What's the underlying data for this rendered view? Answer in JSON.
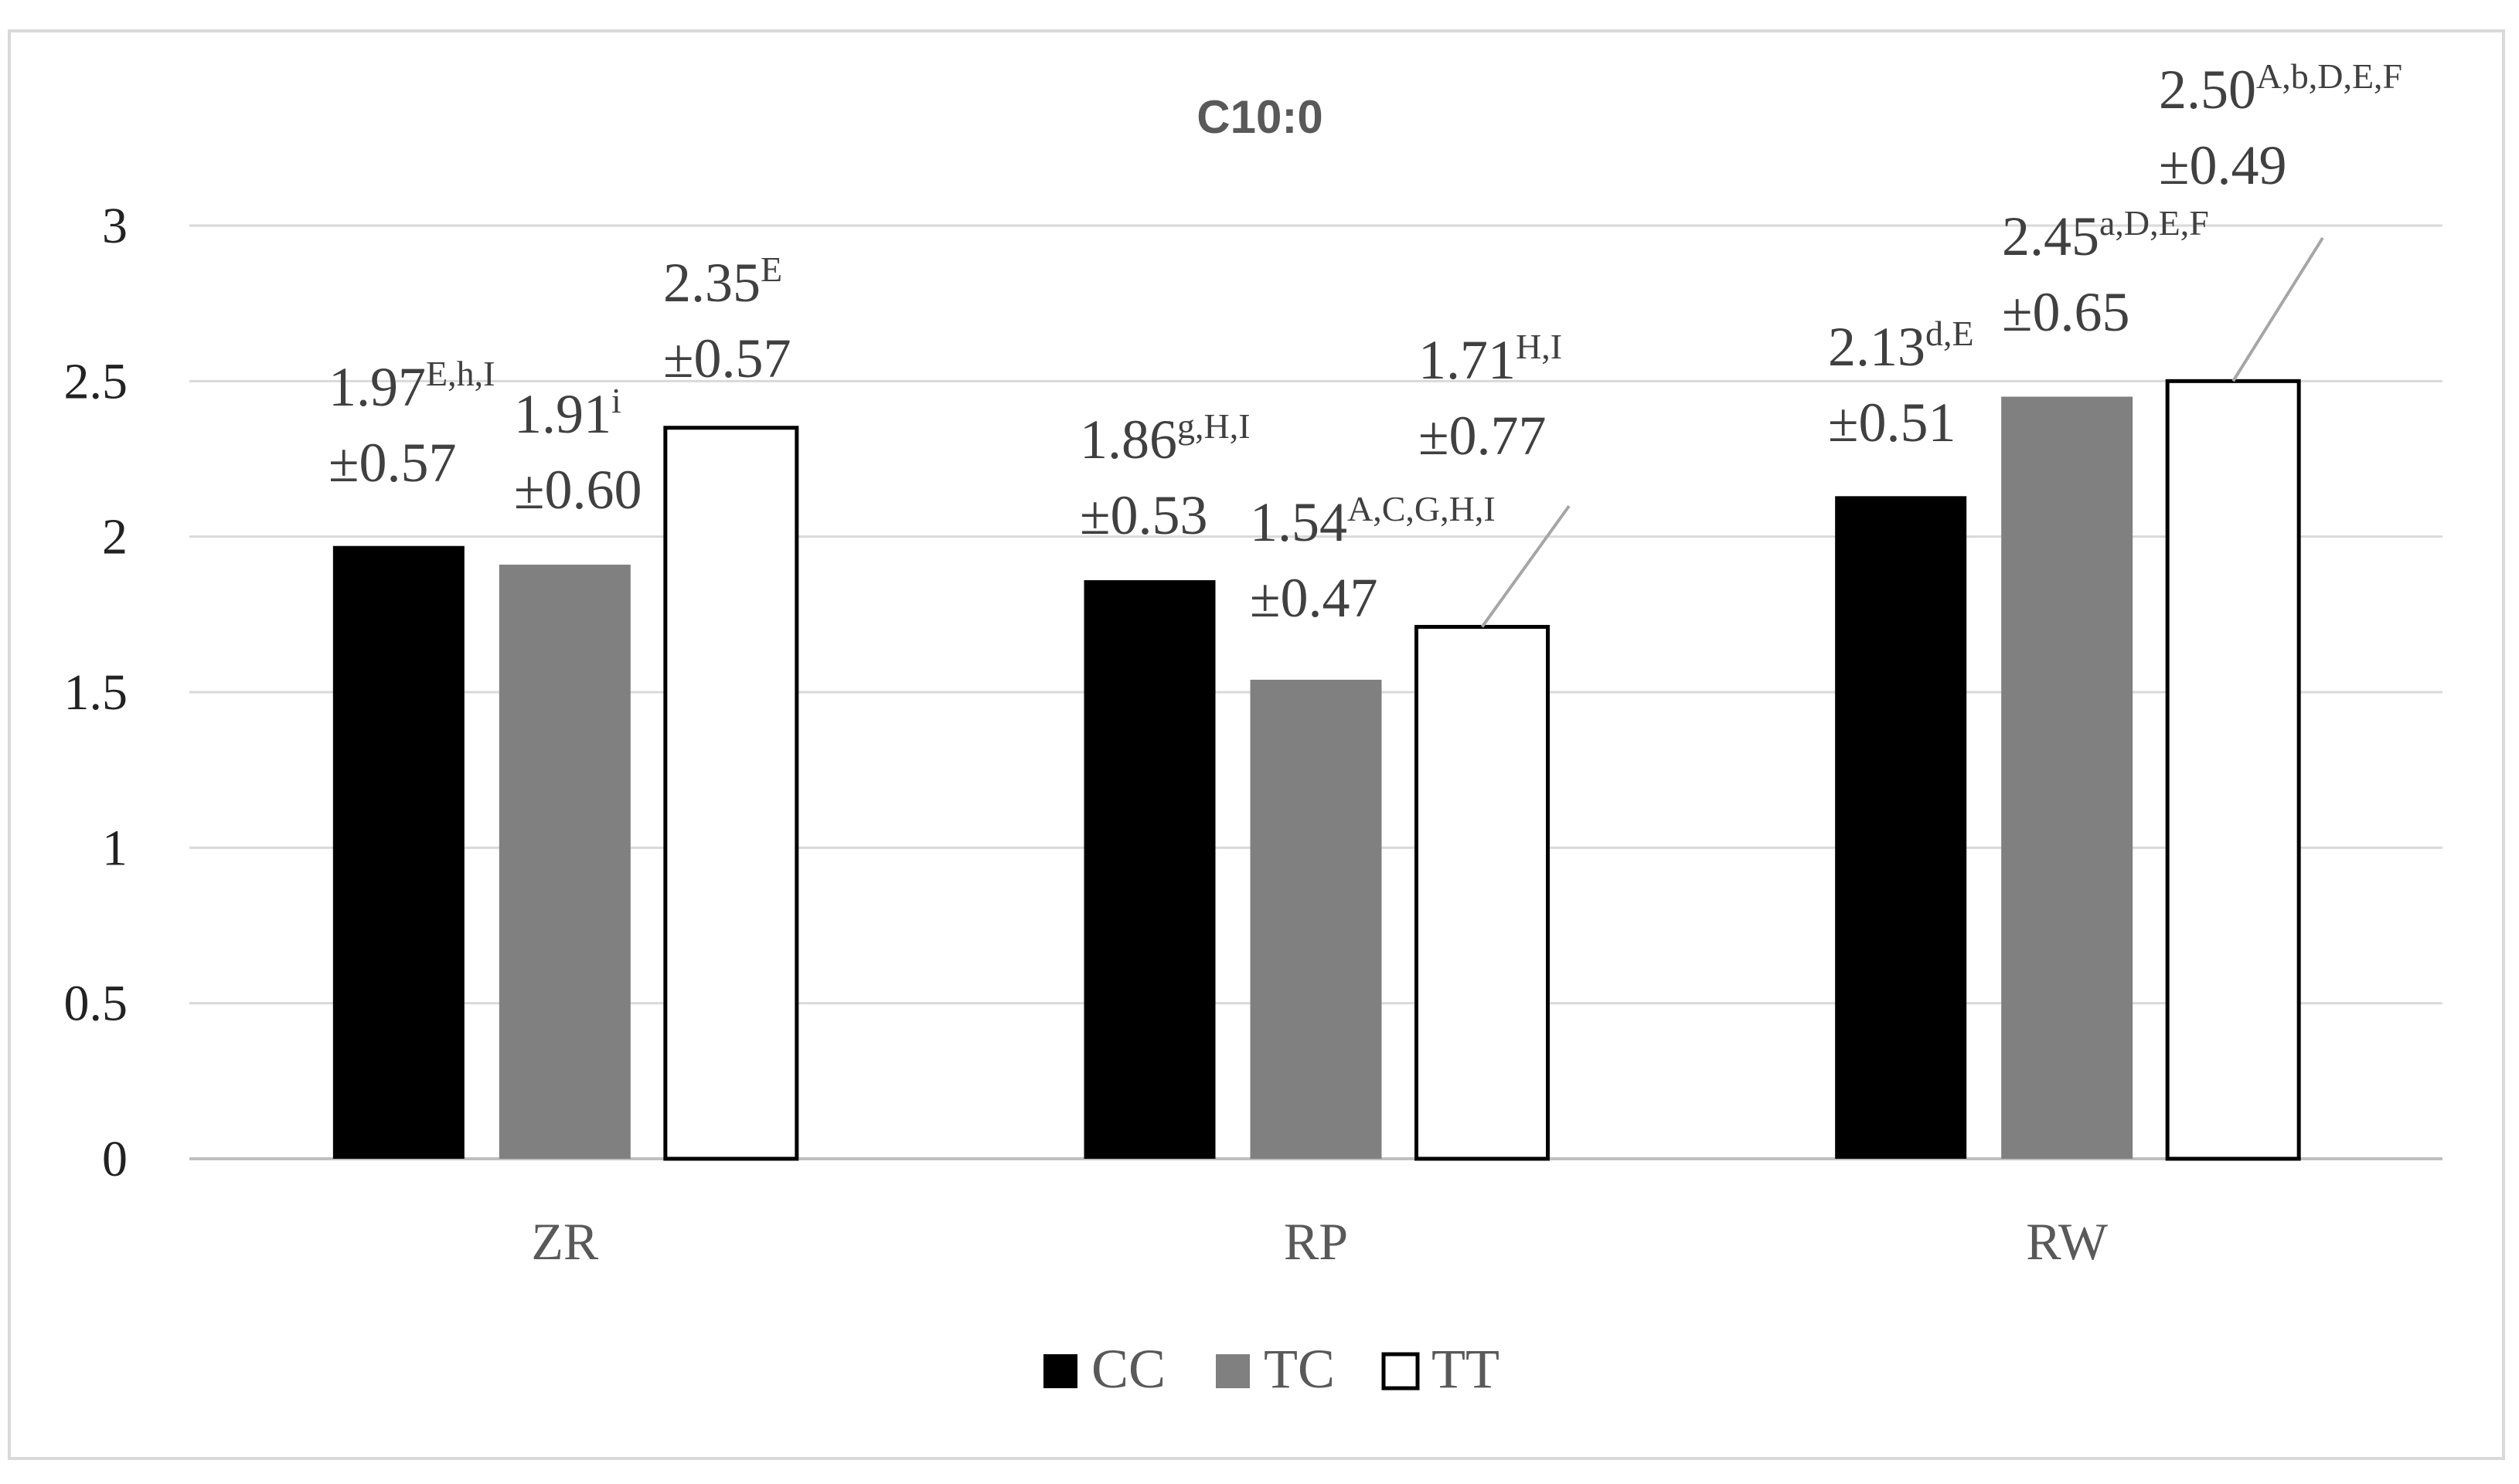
{
  "chart_data": {
    "type": "bar",
    "title": "C10:0",
    "categories": [
      "ZR",
      "RP",
      "RW"
    ],
    "series": [
      {
        "name": "CC",
        "color": "#000000",
        "values": [
          1.97,
          1.86,
          2.13
        ]
      },
      {
        "name": "TC",
        "color": "#808080",
        "values": [
          1.91,
          1.54,
          2.45
        ]
      },
      {
        "name": "TT",
        "color": "#ffffff",
        "values": [
          2.35,
          1.71,
          2.5
        ]
      }
    ],
    "data_labels": [
      [
        {
          "value": "1.97",
          "sup": "E,h,I",
          "sd": "±0.57"
        },
        {
          "value": "1.86",
          "sup": "g,H,I",
          "sd": "±0.53"
        },
        {
          "value": "2.13",
          "sup": "d,E",
          "sd": "±0.51"
        }
      ],
      [
        {
          "value": "1.91",
          "sup": "i",
          "sd": "±0.60"
        },
        {
          "value": "1.54",
          "sup": "A,C,G,H,I",
          "sd": "±0.47"
        },
        {
          "value": "2.45",
          "sup": "a,D,E,F",
          "sd": "±0.65"
        }
      ],
      [
        {
          "value": "2.35",
          "sup": "E",
          "sd": "±0.57"
        },
        {
          "value": "1.71",
          "sup": "H,I",
          "sd": "±0.77"
        },
        {
          "value": "2.50",
          "sup": "A,b,D,E,F",
          "sd": "±0.49"
        }
      ]
    ],
    "ylim": [
      0,
      3
    ],
    "yticks": [
      "0",
      "0.5",
      "1",
      "1.5",
      "2",
      "2.5",
      "3"
    ],
    "grid": true,
    "legend_position": "bottom",
    "xlabel": "",
    "ylabel": ""
  }
}
